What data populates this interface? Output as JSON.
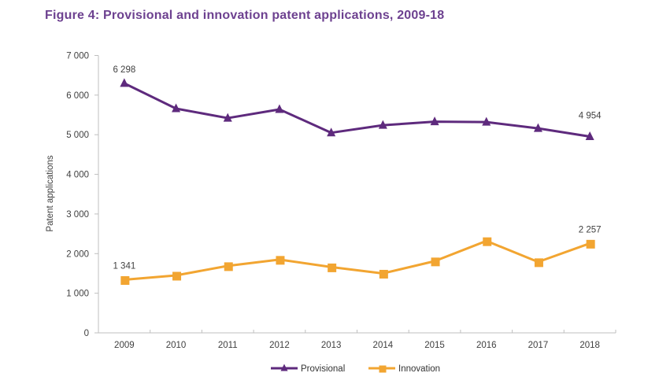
{
  "title": "Figure 4: Provisional and innovation patent applications, 2009-18",
  "colors": {
    "title": "#6d4190",
    "provisional": "#5e2a7d",
    "innovation": "#f2a531",
    "axis_line": "#bfbfbf",
    "text": "#404040"
  },
  "chart_data": {
    "type": "line",
    "title": "Figure 4: Provisional and innovation patent applications, 2009-18",
    "categories": [
      2009,
      2010,
      2011,
      2012,
      2013,
      2014,
      2015,
      2016,
      2017,
      2018
    ],
    "series": [
      {
        "name": "Provisional",
        "color": "#5e2a7d",
        "marker": "triangle",
        "values": [
          6298,
          5660,
          5420,
          5640,
          5050,
          5240,
          5330,
          5320,
          5160,
          4954
        ]
      },
      {
        "name": "Innovation",
        "color": "#f2a531",
        "marker": "square",
        "values": [
          1341,
          1450,
          1690,
          1850,
          1660,
          1500,
          1810,
          2320,
          1790,
          2257
        ]
      }
    ],
    "xlabel": "",
    "ylabel": "Patent applications",
    "ylim": [
      0,
      7000
    ],
    "ytick_step": 1000,
    "ytick_labels": [
      "0",
      "1 000",
      "2 000",
      "3 000",
      "4 000",
      "5 000",
      "6 000",
      "7 000"
    ],
    "grid": false,
    "legend_position": "bottom",
    "annotations": [
      {
        "series": "Provisional",
        "x": 2009,
        "label": "6 298",
        "dy": 0
      },
      {
        "series": "Provisional",
        "x": 2018,
        "label": "4 954",
        "dy": -9
      },
      {
        "series": "Innovation",
        "x": 2009,
        "label": "1 341",
        "dy": 0
      },
      {
        "series": "Innovation",
        "x": 2018,
        "label": "2 257",
        "dy": 0
      }
    ]
  },
  "legend": {
    "items": [
      {
        "label": "Provisional"
      },
      {
        "label": "Innovation"
      }
    ]
  }
}
